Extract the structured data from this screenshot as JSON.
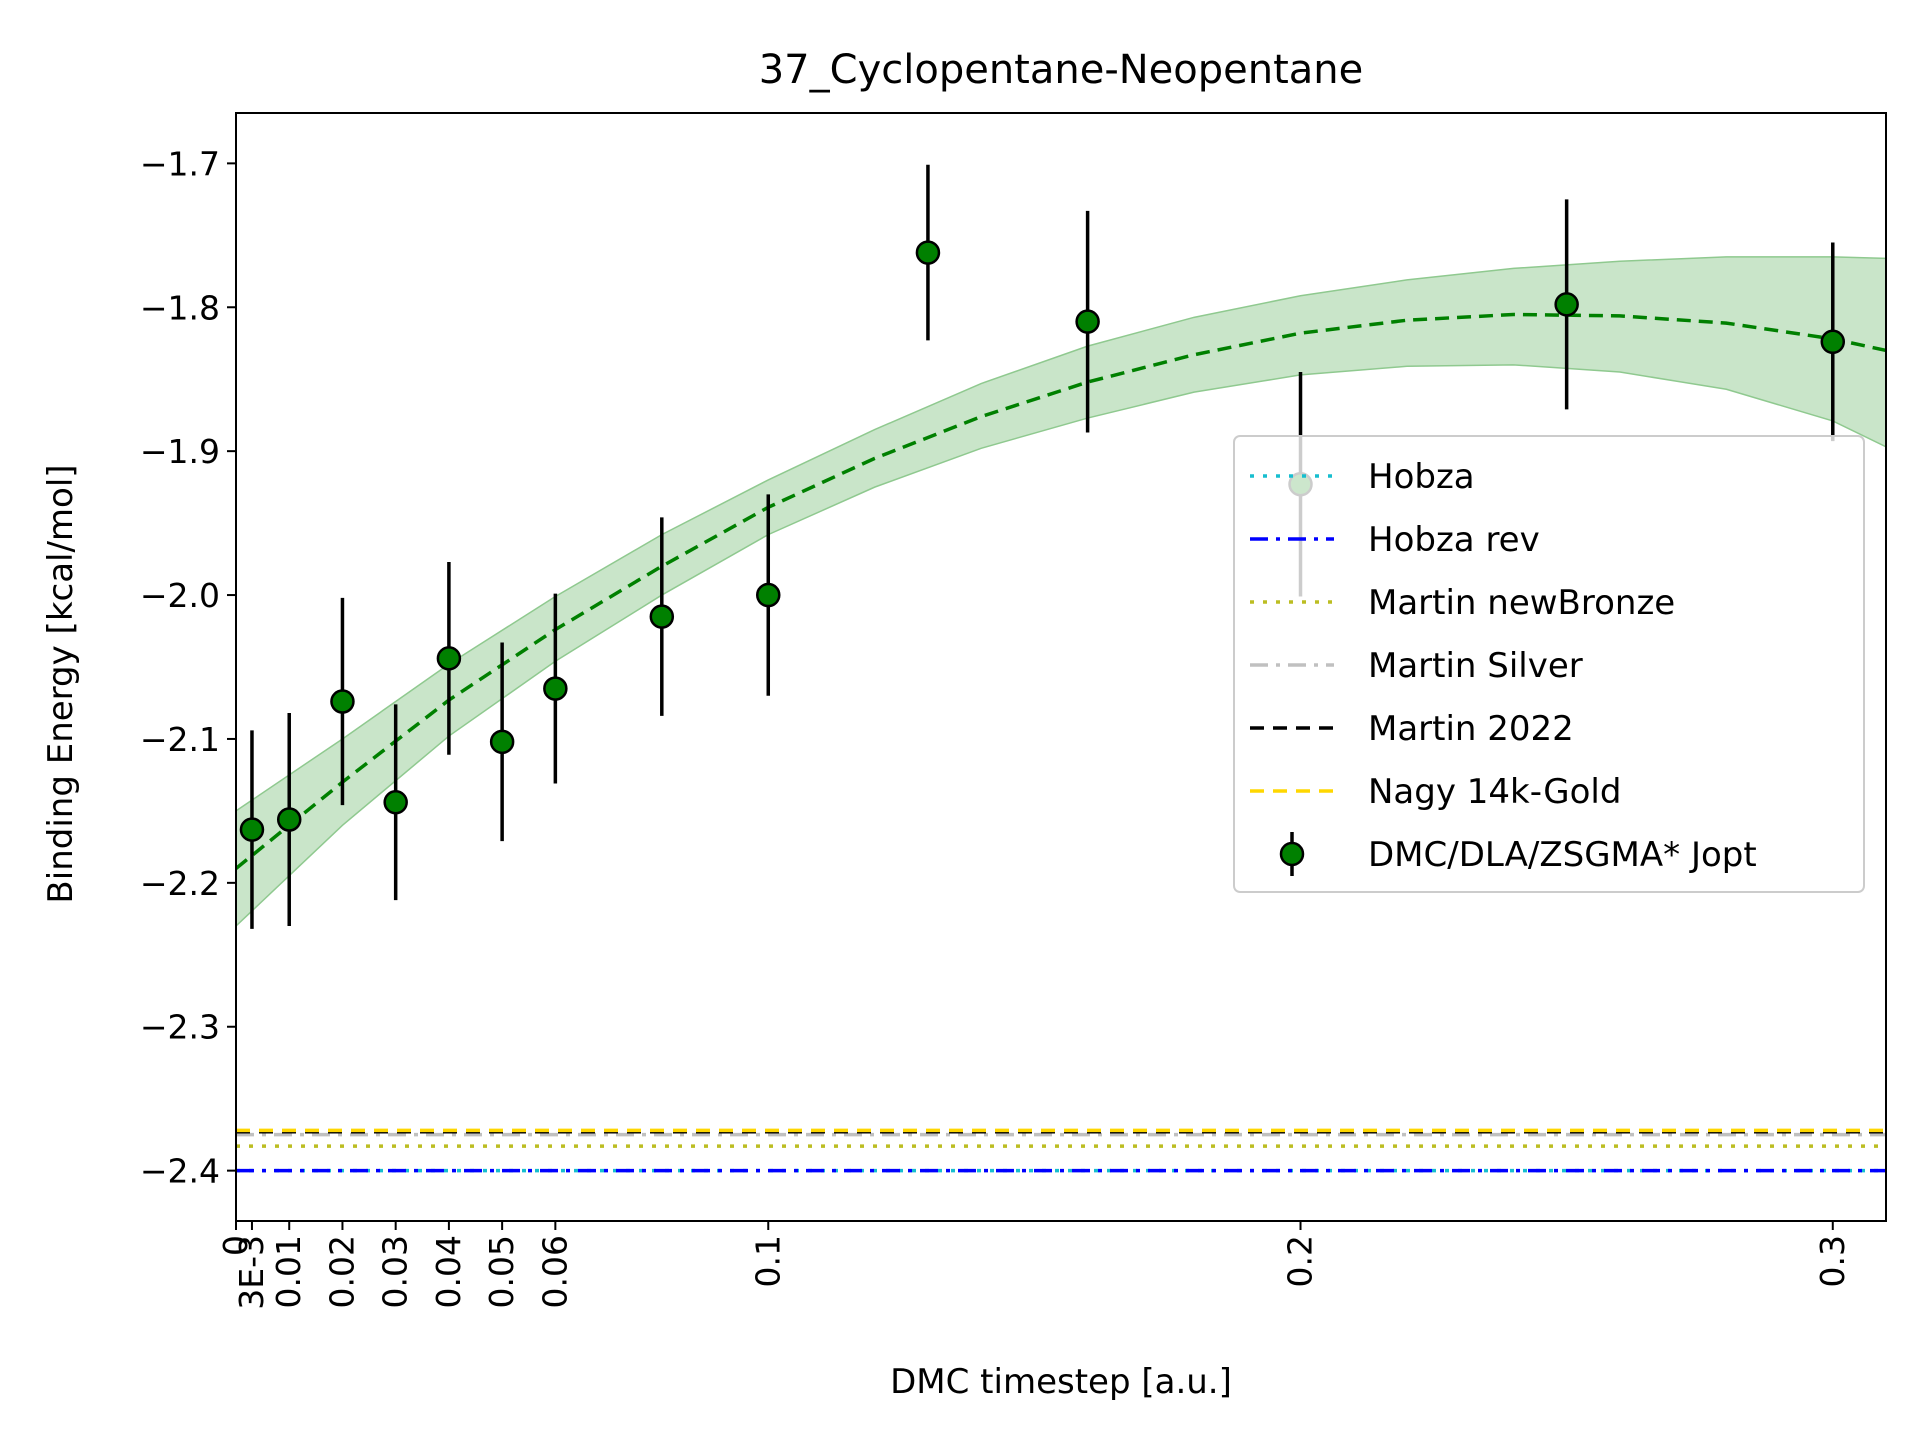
{
  "chart_data": {
    "type": "scatter",
    "title": "37_Cyclopentane-Neopentane",
    "xlabel": "DMC timestep [a.u.]",
    "ylabel": "Binding Energy [kcal/mol]",
    "xlim": [
      0,
      0.31
    ],
    "ylim": [
      -2.435,
      -1.665
    ],
    "grid": false,
    "legend_position": "right",
    "x_ticks": [
      {
        "value": 0,
        "label": "0"
      },
      {
        "value": 0.003,
        "label": "3E-3"
      },
      {
        "value": 0.01,
        "label": "0.01"
      },
      {
        "value": 0.02,
        "label": "0.02"
      },
      {
        "value": 0.03,
        "label": "0.03"
      },
      {
        "value": 0.04,
        "label": "0.04"
      },
      {
        "value": 0.05,
        "label": "0.05"
      },
      {
        "value": 0.06,
        "label": "0.06"
      },
      {
        "value": 0.1,
        "label": "0.1"
      },
      {
        "value": 0.2,
        "label": "0.2"
      },
      {
        "value": 0.3,
        "label": "0.3"
      }
    ],
    "y_ticks": [
      {
        "value": -1.7,
        "label": "−1.7"
      },
      {
        "value": -1.8,
        "label": "−1.8"
      },
      {
        "value": -1.9,
        "label": "−1.9"
      },
      {
        "value": -2.0,
        "label": "−2.0"
      },
      {
        "value": -2.1,
        "label": "−2.1"
      },
      {
        "value": -2.2,
        "label": "−2.2"
      },
      {
        "value": -2.3,
        "label": "−2.3"
      },
      {
        "value": -2.4,
        "label": "−2.4"
      }
    ],
    "reference_lines": [
      {
        "name": "Hobza",
        "y": -2.4,
        "color": "#17becf",
        "dash": "dotted"
      },
      {
        "name": "Hobza rev",
        "y": -2.4,
        "color": "#0000ff",
        "dash": "dashdot"
      },
      {
        "name": "Martin newBronze",
        "y": -2.383,
        "color": "#bcbd22",
        "dash": "dotted"
      },
      {
        "name": "Martin Silver",
        "y": -2.375,
        "color": "#c0c0c0",
        "dash": "dashdot"
      },
      {
        "name": "Martin 2022",
        "y": -2.373,
        "color": "#000000",
        "dash": "dashed"
      },
      {
        "name": "Nagy 14k-Gold",
        "y": -2.372,
        "color": "#ffd700",
        "dash": "dashed"
      }
    ],
    "series": [
      {
        "name": "DMC/DLA/ZSGMA* Jopt",
        "color": "#008000",
        "x": [
          0.003,
          0.01,
          0.02,
          0.03,
          0.04,
          0.05,
          0.06,
          0.08,
          0.1,
          0.13,
          0.16,
          0.2,
          0.25,
          0.3
        ],
        "y": [
          -2.163,
          -2.156,
          -2.074,
          -2.144,
          -2.044,
          -2.102,
          -2.065,
          -2.015,
          -2.0,
          -1.762,
          -1.81,
          -1.923,
          -1.798,
          -1.824
        ],
        "yerr": [
          0.069,
          0.074,
          0.072,
          0.068,
          0.067,
          0.069,
          0.066,
          0.069,
          0.07,
          0.061,
          0.077,
          0.078,
          0.073,
          0.069
        ]
      }
    ],
    "fit": {
      "color": "#008000",
      "band_color": "#b7dcb7",
      "x": [
        0,
        0.02,
        0.04,
        0.06,
        0.08,
        0.1,
        0.12,
        0.14,
        0.16,
        0.18,
        0.2,
        0.22,
        0.24,
        0.26,
        0.28,
        0.3,
        0.31
      ],
      "y": [
        -2.19,
        -2.13,
        -2.073,
        -2.024,
        -1.98,
        -1.939,
        -1.905,
        -1.876,
        -1.852,
        -1.833,
        -1.818,
        -1.809,
        -1.805,
        -1.806,
        -1.811,
        -1.822,
        -1.83
      ],
      "lower": [
        -2.23,
        -2.16,
        -2.098,
        -2.046,
        -2.0,
        -1.958,
        -1.925,
        -1.898,
        -1.877,
        -1.859,
        -1.847,
        -1.841,
        -1.84,
        -1.845,
        -1.857,
        -1.879,
        -1.897
      ],
      "upper": [
        -2.15,
        -2.1,
        -2.048,
        -2.001,
        -1.958,
        -1.92,
        -1.885,
        -1.853,
        -1.827,
        -1.807,
        -1.792,
        -1.781,
        -1.773,
        -1.768,
        -1.765,
        -1.765,
        -1.766
      ]
    }
  }
}
